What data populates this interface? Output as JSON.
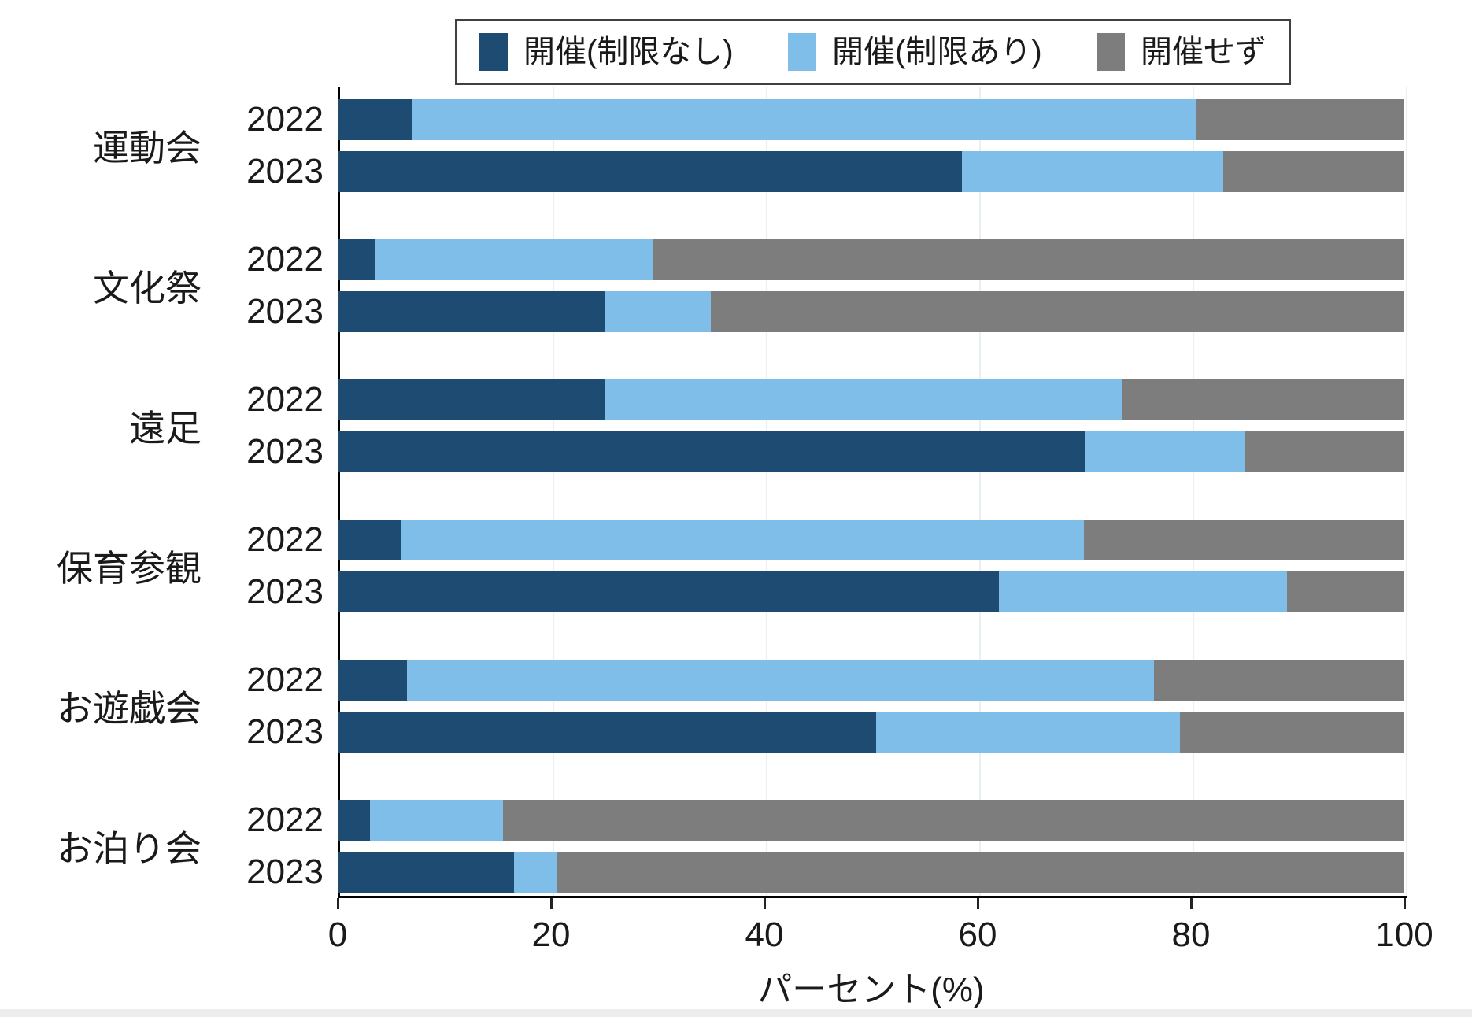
{
  "chart_data": {
    "type": "bar",
    "orientation": "horizontal",
    "stacked": true,
    "xlabel": "パーセント(%)",
    "xlim": [
      0,
      100
    ],
    "x_ticks": [
      0,
      20,
      40,
      60,
      80,
      100
    ],
    "gridlines_at": [
      20,
      40,
      60,
      80,
      100
    ],
    "grid": "vertical",
    "legend_position": "top",
    "series": [
      {
        "key": "held-no-restrictions",
        "name": "開催(制限なし)",
        "color": "#1d4b72"
      },
      {
        "key": "held-with-restrictions",
        "name": "開催(制限あり)",
        "color": "#7fbee8"
      },
      {
        "key": "not-held",
        "name": "開催せず",
        "color": "#7d7d7d"
      }
    ],
    "groups": [
      {
        "category": "運動会",
        "rows": [
          {
            "year": "2022",
            "values": [
              7,
              73.5,
              19.5
            ]
          },
          {
            "year": "2023",
            "values": [
              58.5,
              24.5,
              17
            ]
          }
        ]
      },
      {
        "category": "文化祭",
        "rows": [
          {
            "year": "2022",
            "values": [
              3.5,
              26,
              70.5
            ]
          },
          {
            "year": "2023",
            "values": [
              25,
              10,
              65
            ]
          }
        ]
      },
      {
        "category": "遠足",
        "rows": [
          {
            "year": "2022",
            "values": [
              25,
              48.5,
              26.5
            ]
          },
          {
            "year": "2023",
            "values": [
              70,
              15,
              15
            ]
          }
        ]
      },
      {
        "category": "保育参観",
        "rows": [
          {
            "year": "2022",
            "values": [
              6,
              64,
              30
            ]
          },
          {
            "year": "2023",
            "values": [
              62,
              27,
              11
            ]
          }
        ]
      },
      {
        "category": "お遊戯会",
        "rows": [
          {
            "year": "2022",
            "values": [
              6.5,
              70,
              23.5
            ]
          },
          {
            "year": "2023",
            "values": [
              50.5,
              28.5,
              21
            ]
          }
        ]
      },
      {
        "category": "お泊り会",
        "rows": [
          {
            "year": "2022",
            "values": [
              3,
              12.5,
              84.5
            ]
          },
          {
            "year": "2023",
            "values": [
              16.5,
              4,
              79.5
            ]
          }
        ]
      }
    ]
  },
  "colors": {
    "grid": "#e9f0f2",
    "spine": "#000000",
    "legend_border": "#404040",
    "text": "#1a1a1a",
    "bottom_strip": "#ededed"
  }
}
